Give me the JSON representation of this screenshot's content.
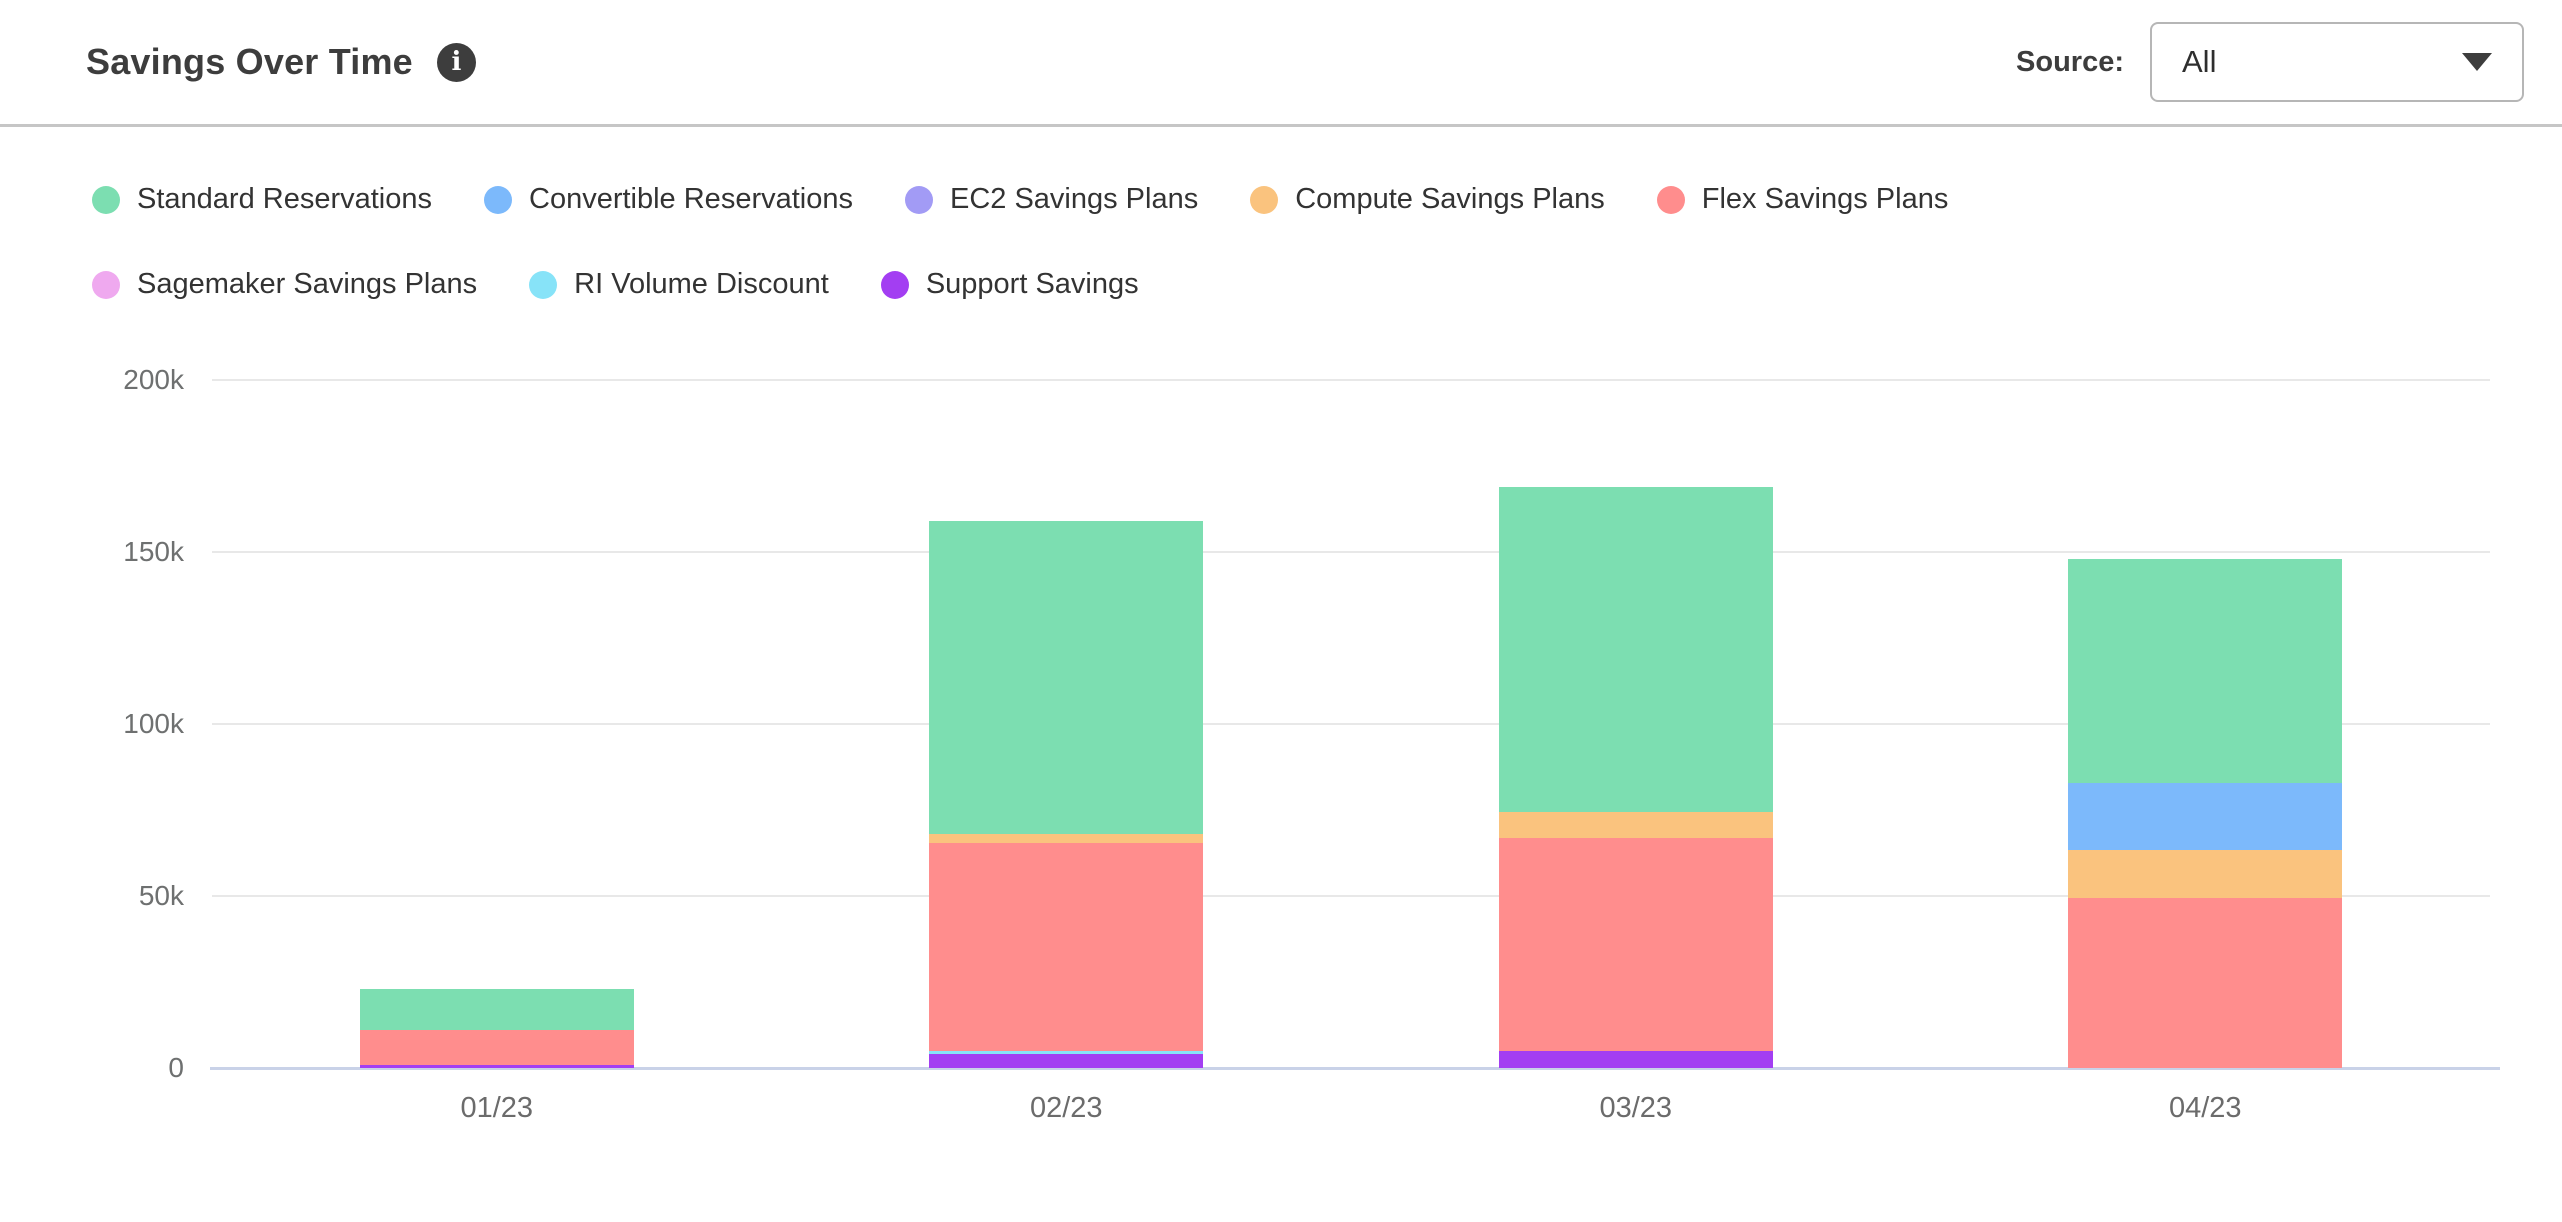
{
  "header": {
    "title": "Savings Over Time",
    "source_label": "Source:",
    "source_value": "All"
  },
  "legend": {
    "items": [
      {
        "label": "Standard Reservations",
        "color": "#7cdeb1"
      },
      {
        "label": "Convertible Reservations",
        "color": "#7cb9fb"
      },
      {
        "label": "EC2 Savings Plans",
        "color": "#a29bf5"
      },
      {
        "label": "Compute Savings Plans",
        "color": "#fac37e"
      },
      {
        "label": "Flex Savings Plans",
        "color": "#ff8d8d"
      },
      {
        "label": "Sagemaker Savings Plans",
        "color": "#efa9ef"
      },
      {
        "label": "RI Volume Discount",
        "color": "#87e3f8"
      },
      {
        "label": "Support Savings",
        "color": "#a33ef2"
      }
    ]
  },
  "chart_data": {
    "type": "bar",
    "stacked": true,
    "title": "Savings Over Time",
    "xlabel": "",
    "ylabel": "",
    "categories": [
      "01/23",
      "02/23",
      "03/23",
      "04/23"
    ],
    "series": [
      {
        "name": "Standard Reservations",
        "color": "#7cdeb1",
        "values": [
          12000,
          91000,
          94500,
          65000
        ]
      },
      {
        "name": "Convertible Reservations",
        "color": "#7cb9fb",
        "values": [
          0,
          0,
          0,
          19500
        ]
      },
      {
        "name": "EC2 Savings Plans",
        "color": "#a29bf5",
        "values": [
          0,
          0,
          0,
          0
        ]
      },
      {
        "name": "Compute Savings Plans",
        "color": "#fac37e",
        "values": [
          0,
          2500,
          7500,
          14000
        ]
      },
      {
        "name": "Flex Savings Plans",
        "color": "#ff8d8d",
        "values": [
          10000,
          60500,
          62000,
          49500
        ]
      },
      {
        "name": "Sagemaker Savings Plans",
        "color": "#efa9ef",
        "values": [
          0,
          0,
          0,
          0
        ]
      },
      {
        "name": "RI Volume Discount",
        "color": "#87e3f8",
        "values": [
          0,
          1000,
          0,
          0
        ]
      },
      {
        "name": "Support Savings",
        "color": "#a33ef2",
        "values": [
          1000,
          4000,
          5000,
          0
        ]
      }
    ],
    "stack_order_bottom_to_top": [
      "Support Savings",
      "RI Volume Discount",
      "Sagemaker Savings Plans",
      "Flex Savings Plans",
      "Compute Savings Plans",
      "EC2 Savings Plans",
      "Convertible Reservations",
      "Standard Reservations"
    ],
    "totals": [
      23000,
      159000,
      169000,
      148000
    ],
    "ylim": [
      0,
      200000
    ],
    "yticks": [
      0,
      50000,
      100000,
      150000,
      200000
    ],
    "ytick_labels": [
      "0",
      "50k",
      "100k",
      "150k",
      "200k"
    ],
    "grid": "horizontal",
    "legend_position": "top",
    "grid_color": "#e8e8e8",
    "axis_line_color": "#c9d2e8"
  }
}
